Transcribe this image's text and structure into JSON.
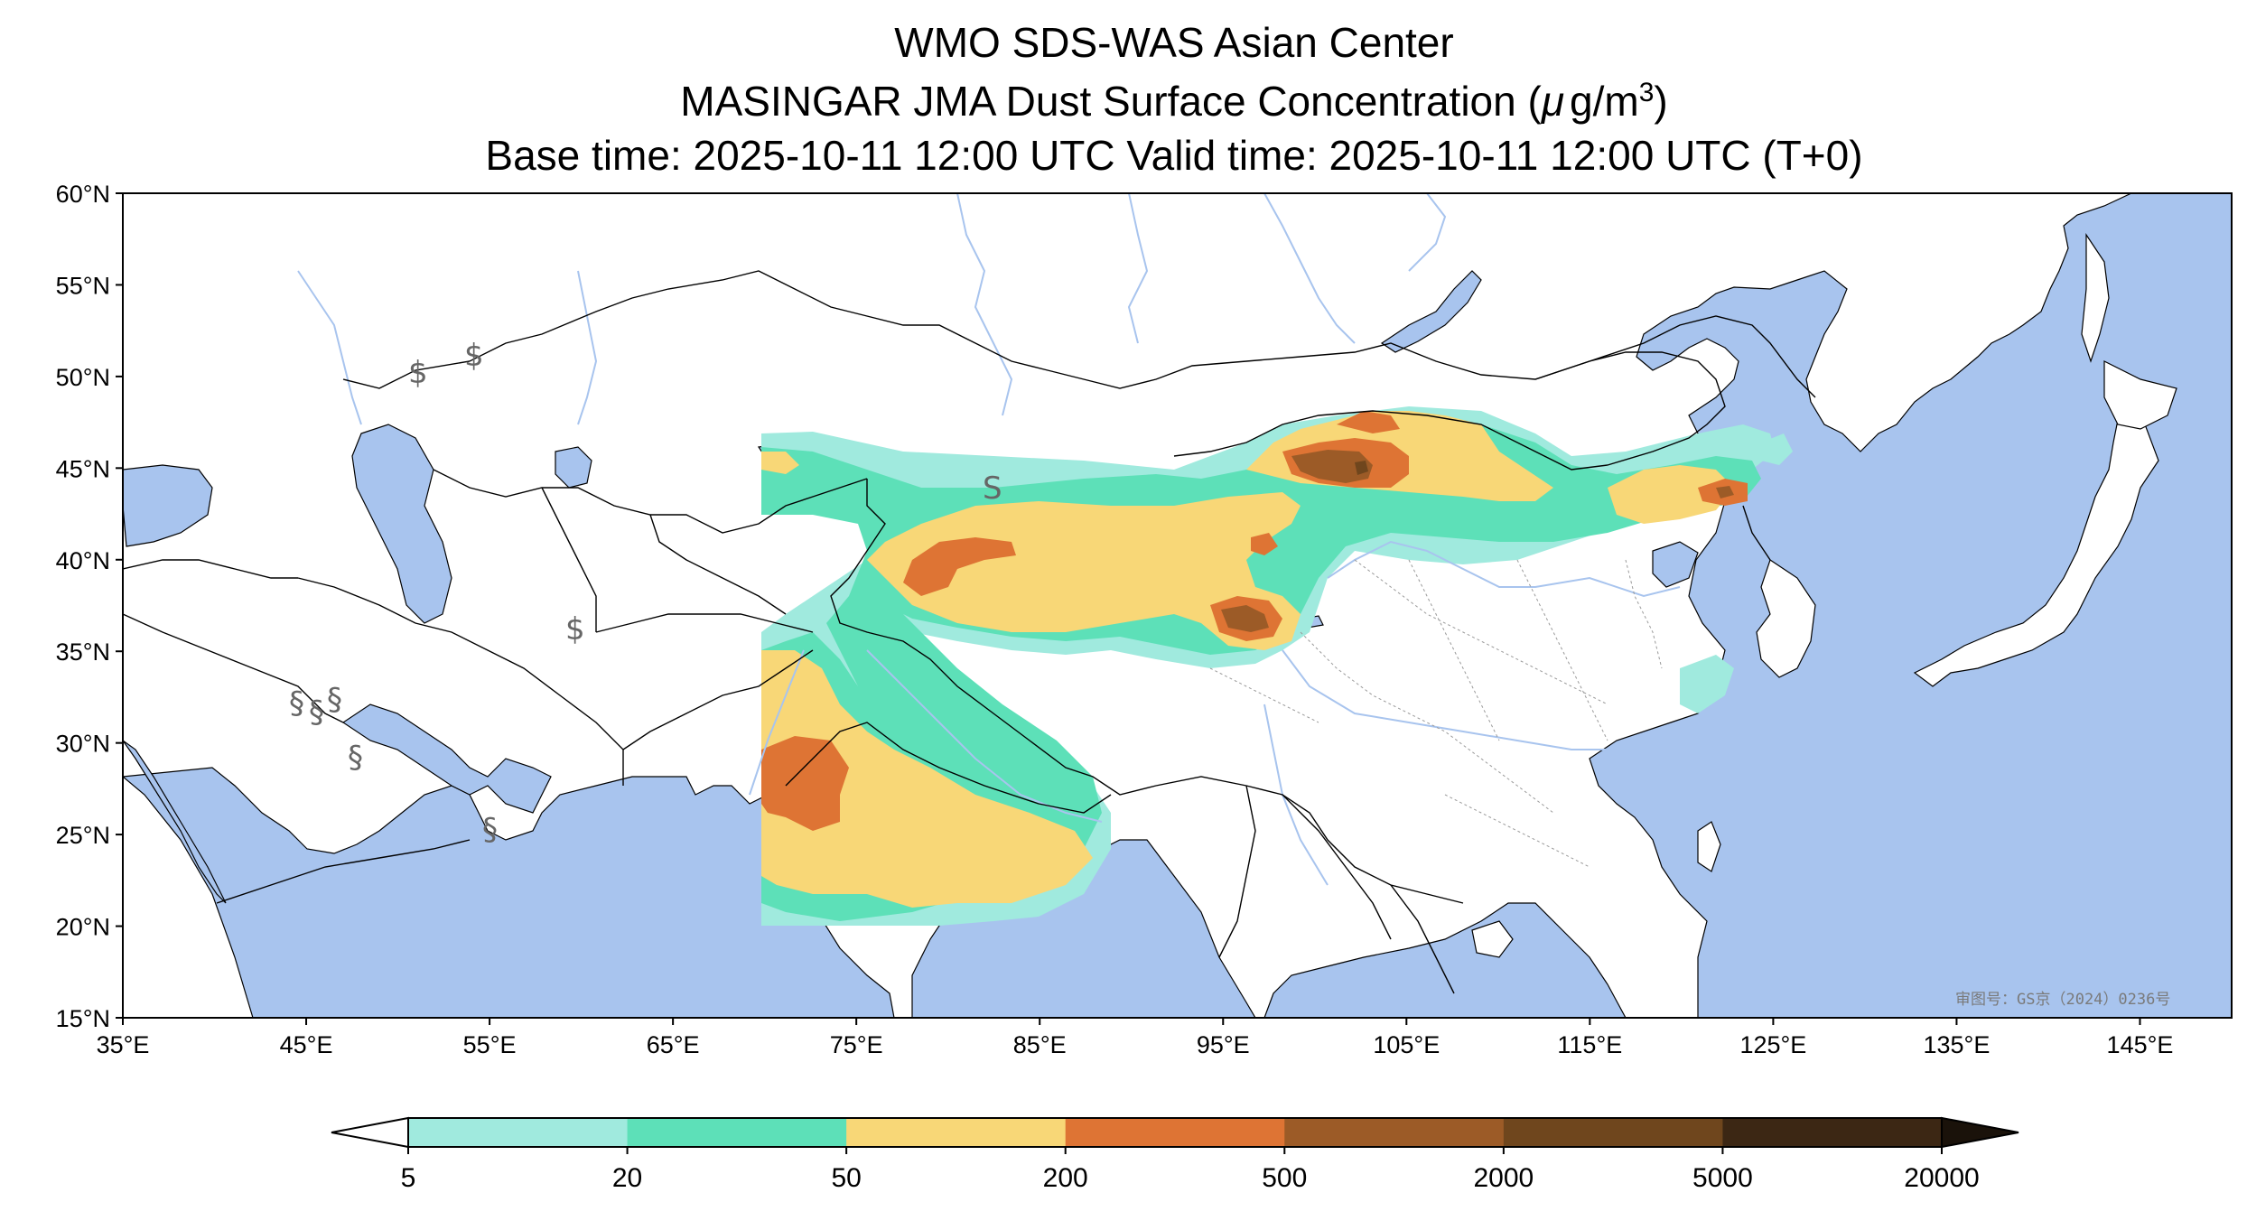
{
  "header": {
    "line1": "WMO SDS-WAS Asian Center",
    "line2_prefix": "MASINGAR JMA Dust Surface Concentration (",
    "line2_mu": "μ",
    "line2_unit": "g/m",
    "line2_sup": "3",
    "line2_suffix": ")",
    "line3": "Base time: 2025-10-11 12:00 UTC Valid time: 2025-10-11 12:00 UTC (T+0)"
  },
  "map": {
    "lon_range": [
      35,
      150
    ],
    "lat_range": [
      15,
      60
    ],
    "lon_ticks": [
      "35°E",
      "45°E",
      "55°E",
      "65°E",
      "75°E",
      "85°E",
      "95°E",
      "105°E",
      "115°E",
      "125°E",
      "135°E",
      "145°E"
    ],
    "lat_ticks": [
      "60°N",
      "55°N",
      "50°N",
      "45°N",
      "40°N",
      "35°N",
      "30°N",
      "25°N",
      "20°N",
      "15°N"
    ],
    "review_number": "审图号：GS京（2024）0236号",
    "colors": {
      "ocean": "#a8c4ee",
      "land": "#ffffff",
      "border": "#000000",
      "river": "#a8c4ee"
    }
  },
  "colorbar": {
    "ticks": [
      "5",
      "20",
      "50",
      "200",
      "500",
      "2000",
      "5000",
      "20000"
    ],
    "colors": [
      "#a0eade",
      "#5de0b8",
      "#f8d777",
      "#de7434",
      "#9c5b27",
      "#6f461d",
      "#3c2714"
    ],
    "extend": "both"
  }
}
